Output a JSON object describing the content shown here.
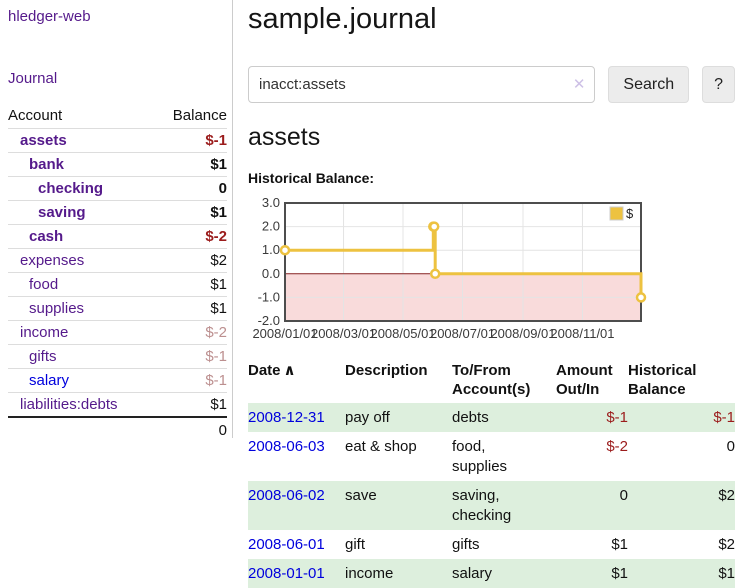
{
  "sidebar": {
    "app_title": "hledger-web",
    "nav_journal": "Journal",
    "accounts_table": {
      "headers": {
        "account": "Account",
        "balance": "Balance"
      },
      "rows": [
        {
          "name": "assets",
          "indent": 0,
          "bold": true,
          "link": "purple",
          "balance": "$-1",
          "style": "neg-strong"
        },
        {
          "name": "bank",
          "indent": 1,
          "bold": true,
          "link": "purple",
          "balance": "$1",
          "style": "pos"
        },
        {
          "name": "checking",
          "indent": 2,
          "bold": true,
          "link": "purple",
          "balance": "0",
          "style": "pos"
        },
        {
          "name": "saving",
          "indent": 2,
          "bold": true,
          "link": "purple",
          "balance": "$1",
          "style": "pos"
        },
        {
          "name": "cash",
          "indent": 1,
          "bold": true,
          "link": "purple",
          "balance": "$-2",
          "style": "neg-strong"
        },
        {
          "name": "expenses",
          "indent": 0,
          "bold": false,
          "link": "purple",
          "balance": "$2",
          "style": "pos"
        },
        {
          "name": "food",
          "indent": 1,
          "bold": false,
          "link": "purple",
          "balance": "$1",
          "style": "pos"
        },
        {
          "name": "supplies",
          "indent": 1,
          "bold": false,
          "link": "purple",
          "balance": "$1",
          "style": "pos"
        },
        {
          "name": "income",
          "indent": 0,
          "bold": false,
          "link": "purple",
          "balance": "$-2",
          "style": "neg-soft"
        },
        {
          "name": "gifts",
          "indent": 1,
          "bold": false,
          "link": "purple",
          "balance": "$-1",
          "style": "neg-soft"
        },
        {
          "name": "salary",
          "indent": 1,
          "bold": false,
          "link": "blue",
          "balance": "$-1",
          "style": "neg-soft"
        },
        {
          "name": "liabilities:debts",
          "indent": 0,
          "bold": false,
          "link": "purple",
          "balance": "$1",
          "style": "pos"
        }
      ],
      "total": "0"
    }
  },
  "main": {
    "title": "sample.journal",
    "search": {
      "value": "inacct:assets",
      "clear_icon": "✕",
      "button": "Search",
      "help_button": "?"
    },
    "section_title": "assets",
    "chart_label": "Historical Balance:"
  },
  "chart_data": {
    "type": "line",
    "step": true,
    "title": "Historical Balance",
    "legend": {
      "position": "top-right"
    },
    "series": [
      {
        "name": "$",
        "color": "#edc240",
        "points": [
          [
            "2008-01-01",
            1
          ],
          [
            "2008-06-01",
            2
          ],
          [
            "2008-06-02",
            2
          ],
          [
            "2008-06-03",
            0
          ],
          [
            "2008-12-31",
            -1
          ]
        ]
      }
    ],
    "x_range": [
      "2008-01-01",
      "2008-12-31"
    ],
    "ylim": [
      -2,
      3
    ],
    "grid": true,
    "y_ticks": [
      {
        "label": "3.0",
        "value": 3
      },
      {
        "label": "2.0",
        "value": 2
      },
      {
        "label": "1.0",
        "value": 1
      },
      {
        "label": "0.0",
        "value": 0
      },
      {
        "label": "-1.0",
        "value": -1
      },
      {
        "label": "-2.0",
        "value": -2
      }
    ],
    "x_ticks": [
      {
        "label": "2008/01/01",
        "date": "2008-01-01"
      },
      {
        "label": "2008/03/01",
        "date": "2008-03-01"
      },
      {
        "label": "2008/05/01",
        "date": "2008-05-01"
      },
      {
        "label": "2008/07/01",
        "date": "2008-07-01"
      },
      {
        "label": "2008/09/01",
        "date": "2008-09-01"
      },
      {
        "label": "2008/11/01",
        "date": "2008-11-01"
      }
    ],
    "colors": {
      "negative_region": "#f9dbdb",
      "zero_line": "#8b2424",
      "border": "#4d4d4d",
      "grid": "#e4e4e4"
    }
  },
  "transactions": {
    "headers": {
      "date": "Date",
      "sort_icon": "∧",
      "description": "Description",
      "account": "To/From Account(s)",
      "amount": "Amount Out/In",
      "balance": "Historical Balance"
    },
    "rows": [
      {
        "date": "2008-12-31",
        "description": "pay off",
        "account": "debts",
        "amount": "$-1",
        "amount_neg": true,
        "balance": "$-1",
        "balance_neg": true
      },
      {
        "date": "2008-06-03",
        "description": "eat & shop",
        "account": "food, supplies",
        "amount": "$-2",
        "amount_neg": true,
        "balance": "0",
        "balance_neg": false
      },
      {
        "date": "2008-06-02",
        "description": "save",
        "account": "saving, checking",
        "amount": "0",
        "amount_neg": false,
        "balance": "$2",
        "balance_neg": false
      },
      {
        "date": "2008-06-01",
        "description": "gift",
        "account": "gifts",
        "amount": "$1",
        "amount_neg": false,
        "balance": "$2",
        "balance_neg": false
      },
      {
        "date": "2008-01-01",
        "description": "income",
        "account": "salary",
        "amount": "$1",
        "amount_neg": false,
        "balance": "$1",
        "balance_neg": false
      }
    ]
  }
}
